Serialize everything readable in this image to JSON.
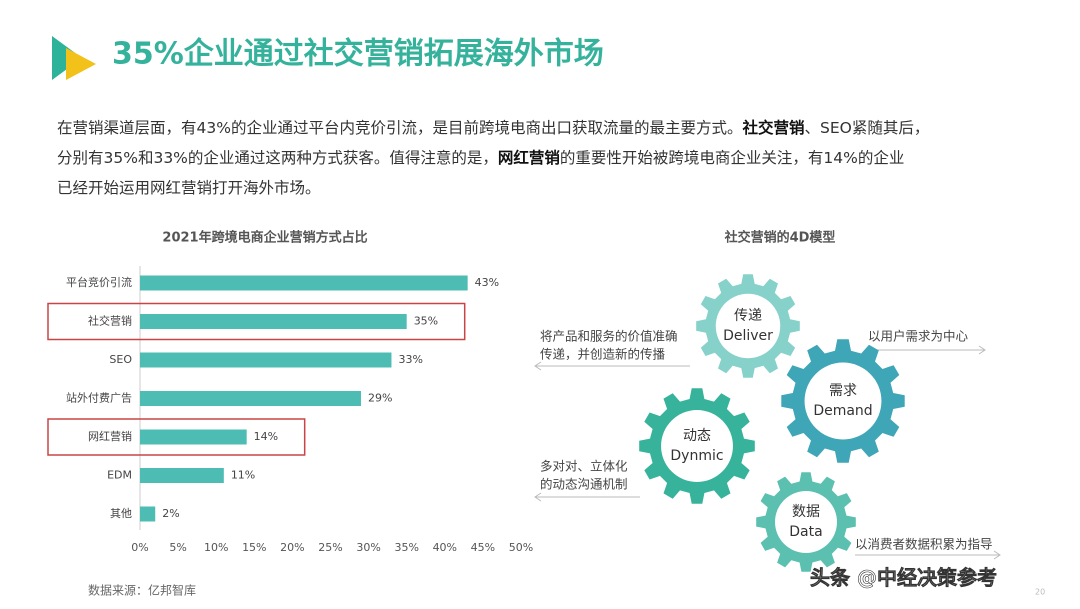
{
  "title": "35%企业通过社交营销拓展海外市场",
  "paragraph": [
    [
      {
        "text": "在营销渠道层面，有43%的企业通过平台内竞价引流，是目前跨境电商出口获取流量的最主要方式。",
        "bold": false
      },
      {
        "text": "社交营销",
        "bold": true
      },
      {
        "text": "、SEO紧随其后，",
        "bold": false
      }
    ],
    [
      {
        "text": "分别有35%和33%的企业通过这两种方式获客。值得注意的是，",
        "bold": false
      },
      {
        "text": "网红营销",
        "bold": true
      },
      {
        "text": "的重要性开始被跨境电商企业关注，有14%的企业",
        "bold": false
      }
    ],
    [
      {
        "text": "已经开始运用网红营销打开海外市场。",
        "bold": false
      }
    ]
  ],
  "chart_data": {
    "type": "bar",
    "orientation": "horizontal",
    "title": "2021年跨境电商企业营销方式占比",
    "categories": [
      "平台竞价引流",
      "社交营销",
      "SEO",
      "站外付费广告",
      "网红营销",
      "EDM",
      "其他"
    ],
    "values": [
      43,
      35,
      33,
      29,
      14,
      11,
      2
    ],
    "value_labels": [
      "43%",
      "35%",
      "33%",
      "29%",
      "14%",
      "11%",
      "2%"
    ],
    "color": "#4dbdb4",
    "highlighted": [
      1,
      4
    ],
    "highlight_color": "#c94545",
    "xlim": [
      0,
      50
    ],
    "xticks": [
      {
        "value": 0,
        "label": "0%"
      },
      {
        "value": 5,
        "label": "5%"
      },
      {
        "value": 10,
        "label": "10%"
      },
      {
        "value": 15,
        "label": "15%"
      },
      {
        "value": 20,
        "label": "20%"
      },
      {
        "value": 25,
        "label": "25%"
      },
      {
        "value": 30,
        "label": "30%"
      },
      {
        "value": 35,
        "label": "35%"
      },
      {
        "value": 40,
        "label": "40%"
      },
      {
        "value": 45,
        "label": "45%"
      },
      {
        "value": 50,
        "label": "50%"
      }
    ],
    "grid": false
  },
  "source": "数据来源：亿邦智库",
  "diagram": {
    "title": "社交营销的4D模型",
    "gears": [
      {
        "label": "传递",
        "sublabel": "Deliver",
        "color": "#86d1ca"
      },
      {
        "label": "需求",
        "sublabel": "Demand",
        "color": "#3ea6b6"
      },
      {
        "label": "动态",
        "sublabel": "Dynmic",
        "color": "#36b39a"
      },
      {
        "label": "数据",
        "sublabel": "Data",
        "color": "#5cc0b0"
      }
    ],
    "annotations": [
      {
        "lines": [
          "将产品和服务的价值准确",
          "传递，并创造新的传播"
        ]
      },
      {
        "lines": [
          "以用户需求为中心"
        ]
      },
      {
        "lines": [
          "多对对、立体化",
          "的动态沟通机制"
        ]
      },
      {
        "lines": [
          "以消费者数据积累为指导"
        ]
      }
    ]
  },
  "footer_credit": "头条 @中经决策参考",
  "page_number": "20"
}
